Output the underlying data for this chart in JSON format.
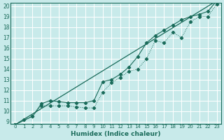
{
  "xlabel": "Humidex (Indice chaleur)",
  "bg_color": "#c8eaea",
  "grid_color": "#ffffff",
  "line_color": "#1a6b5a",
  "xlim": [
    -0.5,
    23.5
  ],
  "ylim": [
    8.8,
    20.3
  ],
  "xticks": [
    0,
    1,
    2,
    3,
    4,
    5,
    6,
    7,
    8,
    9,
    10,
    11,
    12,
    13,
    14,
    15,
    16,
    17,
    18,
    19,
    20,
    21,
    22,
    23
  ],
  "yticks": [
    9,
    10,
    11,
    12,
    13,
    14,
    15,
    16,
    17,
    18,
    19,
    20
  ],
  "line1_x": [
    0,
    1,
    2,
    3,
    4,
    5,
    6,
    7,
    8,
    9,
    10,
    11,
    12,
    13,
    14,
    15,
    16,
    17,
    18,
    19,
    20,
    21,
    22,
    23
  ],
  "line1_y": [
    8.7,
    9.2,
    9.5,
    10.5,
    10.5,
    10.5,
    10.5,
    10.4,
    10.3,
    10.3,
    11.8,
    12.7,
    13.2,
    13.8,
    14.0,
    15.0,
    16.7,
    16.5,
    17.5,
    17.0,
    18.5,
    19.0,
    19.0,
    20.2
  ],
  "line2_x": [
    0,
    2,
    3,
    4,
    5,
    6,
    7,
    8,
    9,
    10,
    11,
    12,
    13,
    14,
    15,
    16,
    17,
    18,
    19,
    20,
    21,
    22,
    23
  ],
  "line2_y": [
    8.7,
    9.5,
    10.7,
    11.0,
    10.9,
    10.8,
    10.8,
    10.8,
    11.0,
    12.8,
    13.0,
    13.5,
    14.2,
    15.2,
    16.5,
    17.2,
    17.7,
    18.2,
    18.7,
    19.0,
    19.2,
    19.5,
    20.5
  ],
  "line3_x": [
    0,
    23
  ],
  "line3_y": [
    8.7,
    20.5
  ]
}
